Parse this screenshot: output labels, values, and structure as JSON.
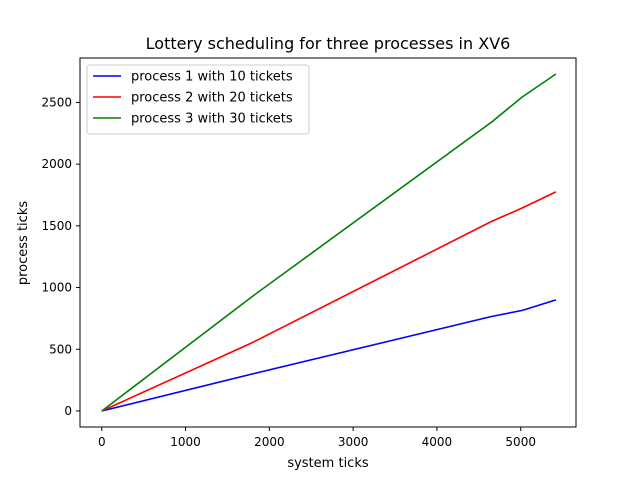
{
  "chart_data": {
    "type": "line",
    "title": "Lottery scheduling for three processes in XV6",
    "xlabel": "system ticks",
    "ylabel": "process ticks",
    "xlim": [
      -260,
      5660
    ],
    "ylim": [
      -130,
      2860
    ],
    "xticks": [
      0,
      1000,
      2000,
      3000,
      4000,
      5000
    ],
    "yticks": [
      0,
      500,
      1000,
      1500,
      2000,
      2500
    ],
    "grid": false,
    "legend_position": "top-left",
    "series": [
      {
        "name": "process 1 with 10 tickets",
        "color": "#0000ff",
        "x": [
          0,
          1800,
          4650,
          5020,
          5420
        ],
        "y": [
          0,
          300,
          765,
          815,
          900
        ]
      },
      {
        "name": "process 2 with 20 tickets",
        "color": "#ff0000",
        "x": [
          0,
          1800,
          4650,
          5020,
          5420
        ],
        "y": [
          0,
          555,
          1535,
          1645,
          1775
        ]
      },
      {
        "name": "process 3 with 30 tickets",
        "color": "#008000",
        "x": [
          0,
          1800,
          4650,
          5020,
          5420
        ],
        "y": [
          0,
          930,
          2340,
          2545,
          2730
        ]
      }
    ]
  }
}
